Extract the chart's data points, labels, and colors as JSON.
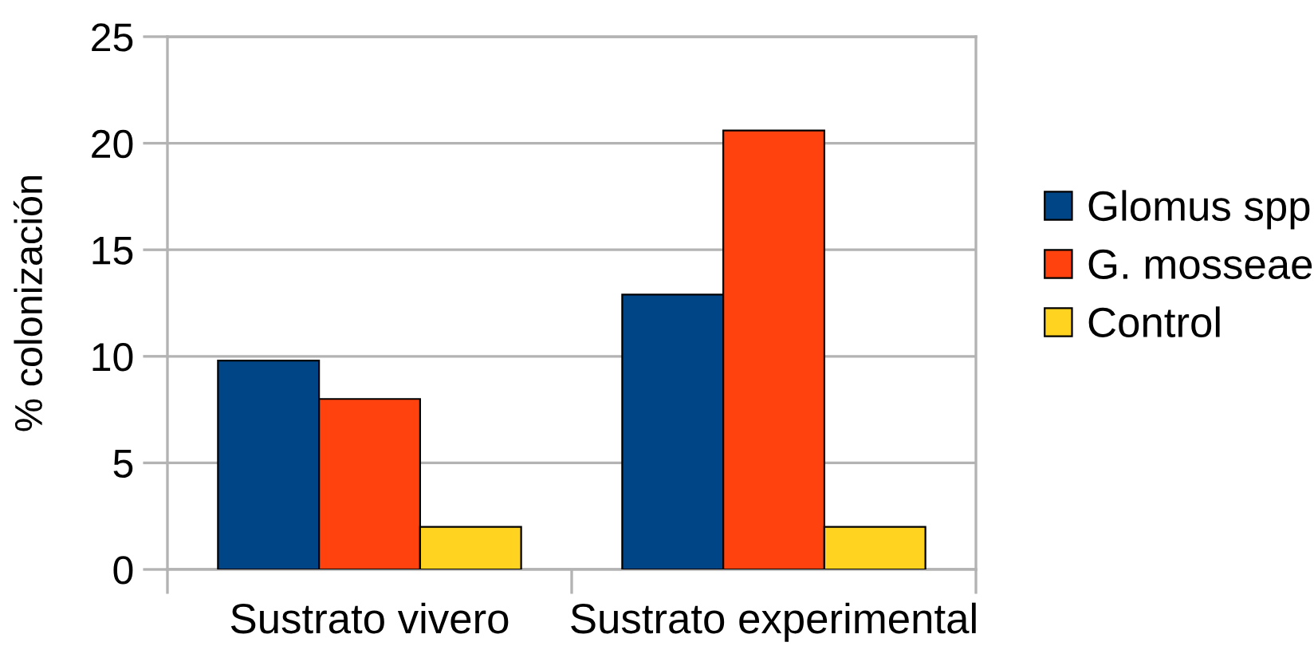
{
  "chart_data": {
    "type": "bar",
    "ylabel": "% colonización",
    "categories": [
      "Sustrato vivero",
      "Sustrato experimental"
    ],
    "series": [
      {
        "name": "Glomus spp",
        "color": "#004586",
        "values": [
          9.8,
          12.9
        ]
      },
      {
        "name": "G. mosseae",
        "color": "#ff420e",
        "values": [
          8.0,
          20.6
        ]
      },
      {
        "name": "Control",
        "color": "#ffd320",
        "values": [
          2.0,
          2.0
        ]
      }
    ],
    "ylim": [
      0,
      25
    ],
    "yticks": [
      0,
      5,
      10,
      15,
      20,
      25
    ],
    "grid": "y",
    "legend": "right"
  }
}
